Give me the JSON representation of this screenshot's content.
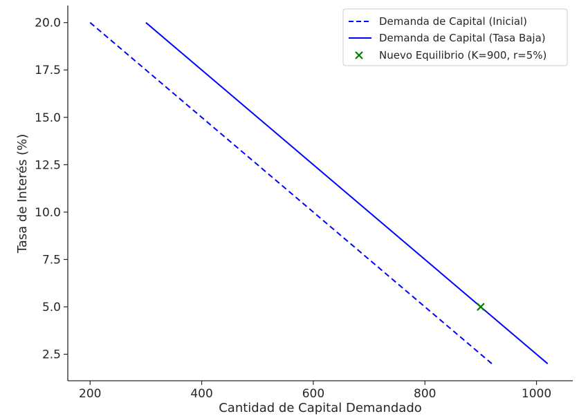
{
  "chart_data": {
    "type": "line",
    "title": "",
    "xlabel": "Cantidad de Capital Demandado",
    "ylabel": "Tasa de Interés (%)",
    "xlim": [
      160,
      1065
    ],
    "ylim": [
      1.1,
      20.9
    ],
    "xticks": [
      200,
      400,
      600,
      800,
      1000
    ],
    "yticks": [
      2.5,
      5.0,
      7.5,
      10.0,
      12.5,
      15.0,
      17.5,
      20.0
    ],
    "xtick_labels": [
      "200",
      "400",
      "600",
      "800",
      "1000"
    ],
    "ytick_labels": [
      "2.5",
      "5.0",
      "7.5",
      "10.0",
      "12.5",
      "15.0",
      "17.5",
      "20.0"
    ],
    "grid": false,
    "legend_position": "top-right",
    "series": [
      {
        "name": "Demanda de Capital (Inicial)",
        "style": "dashed",
        "color": "#0000ff",
        "x": [
          200,
          920
        ],
        "y": [
          20,
          2
        ]
      },
      {
        "name": "Demanda de Capital (Tasa Baja)",
        "style": "solid",
        "color": "#0000ff",
        "x": [
          300,
          1020
        ],
        "y": [
          20,
          2
        ]
      }
    ],
    "points": [
      {
        "name": "Nuevo Equilibrio (K=900, r=5%)",
        "marker": "x",
        "color": "#008000",
        "x": 900,
        "y": 5
      }
    ]
  }
}
